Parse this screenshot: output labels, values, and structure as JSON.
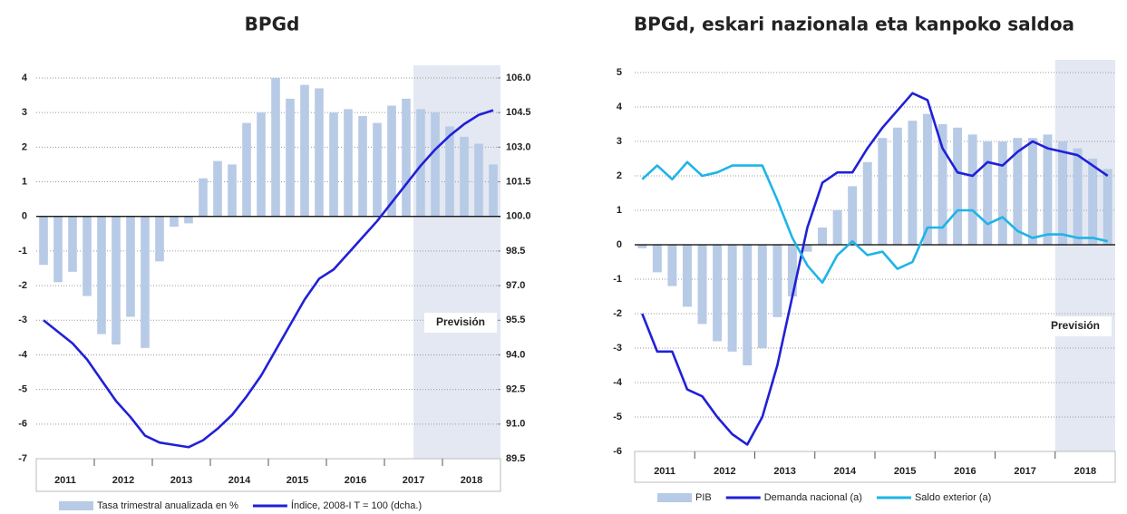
{
  "chart_data": [
    {
      "type": "bar_line",
      "title": "BPGd",
      "x_labels": [
        "2011",
        "2012",
        "2013",
        "2014",
        "2015",
        "2016",
        "2017",
        "2018"
      ],
      "series": [
        {
          "name": "Tasa trimestral anualizada en %",
          "type": "bar",
          "color": "#b7cae6",
          "values": [
            -1.4,
            -1.9,
            -1.6,
            -2.3,
            -3.4,
            -3.7,
            -2.9,
            -3.8,
            -1.3,
            -0.3,
            -0.2,
            1.1,
            1.6,
            1.5,
            2.7,
            3.0,
            4.0,
            3.4,
            3.8,
            3.7,
            3.0,
            3.1,
            2.9,
            2.7,
            3.2,
            3.4,
            3.1,
            3.0,
            2.6,
            2.3,
            2.1,
            1.5
          ]
        },
        {
          "name": "Índice, 2008-I T = 100 (dcha.)",
          "type": "line",
          "axis": "y2",
          "color": "#2020d8",
          "values": [
            95.5,
            95.0,
            94.5,
            93.8,
            92.9,
            92.0,
            91.3,
            90.5,
            90.2,
            90.1,
            90.0,
            90.3,
            90.8,
            91.4,
            92.2,
            93.1,
            94.2,
            95.3,
            96.4,
            97.3,
            97.7,
            98.4,
            99.1,
            99.8,
            100.6,
            101.4,
            102.2,
            102.9,
            103.5,
            104.0,
            104.4,
            104.6
          ]
        }
      ],
      "ylim": [
        -7,
        4
      ],
      "yticks": [
        -7,
        -6,
        -5,
        -4,
        -3,
        -2,
        -1,
        0,
        1,
        2,
        3,
        4
      ],
      "y2lim": [
        89.5,
        106
      ],
      "y2ticks": [
        89.5,
        {
          "value": 91,
          "label": "91.0"
        },
        92.5,
        {
          "value": 94,
          "label": "94.0"
        },
        95.5,
        {
          "value": 97,
          "label": "97.0"
        },
        98.5,
        {
          "value": 100,
          "label": "100.0"
        },
        101.5,
        {
          "value": 103,
          "label": "103.0"
        },
        104.5,
        {
          "value": 106,
          "label": "106.0"
        }
      ],
      "grid": true,
      "annotation": "Previsión"
    },
    {
      "type": "bar_line",
      "title": "BPGd, eskari nazionala eta kanpoko saldoa",
      "x_labels": [
        "2011",
        "2012",
        "2013",
        "2014",
        "2015",
        "2016",
        "2017",
        "2018"
      ],
      "series": [
        {
          "name": "PIB",
          "type": "bar",
          "color": "#b7cae6",
          "values": [
            -0.1,
            -0.8,
            -1.2,
            -1.8,
            -2.3,
            -2.8,
            -3.1,
            -3.5,
            -3.0,
            -2.1,
            -1.5,
            -0.2,
            0.5,
            1.0,
            1.7,
            2.4,
            3.1,
            3.4,
            3.6,
            3.8,
            3.5,
            3.4,
            3.2,
            3.0,
            3.0,
            3.1,
            3.1,
            3.2,
            3.0,
            2.8,
            2.5,
            2.2
          ]
        },
        {
          "name": "Demanda nacional (a)",
          "type": "line",
          "color": "#2020d8",
          "values": [
            -2.0,
            -3.1,
            -3.1,
            -4.2,
            -4.4,
            -5.0,
            -5.5,
            -5.8,
            -5.0,
            -3.5,
            -1.5,
            0.5,
            1.8,
            2.1,
            2.1,
            2.8,
            3.4,
            3.9,
            4.4,
            4.2,
            2.8,
            2.1,
            2.0,
            2.4,
            2.3,
            2.7,
            3.0,
            2.8,
            2.7,
            2.6,
            2.3,
            2.0
          ]
        },
        {
          "name": "Saldo exterior (a)",
          "type": "line",
          "color": "#1eb4e8",
          "values": [
            1.9,
            2.3,
            1.9,
            2.4,
            2.0,
            2.1,
            2.3,
            2.3,
            2.3,
            1.3,
            0.2,
            -0.6,
            -1.1,
            -0.3,
            0.1,
            -0.3,
            -0.2,
            -0.7,
            -0.5,
            0.5,
            0.5,
            1.0,
            1.0,
            0.6,
            0.8,
            0.4,
            0.2,
            0.3,
            0.3,
            0.2,
            0.2,
            0.1
          ]
        }
      ],
      "ylim": [
        -6,
        5
      ],
      "yticks": [
        -6,
        -5,
        -4,
        -3,
        -2,
        -1,
        0,
        1,
        2,
        3,
        4,
        5
      ],
      "grid": true,
      "annotation": "Previsión"
    }
  ]
}
